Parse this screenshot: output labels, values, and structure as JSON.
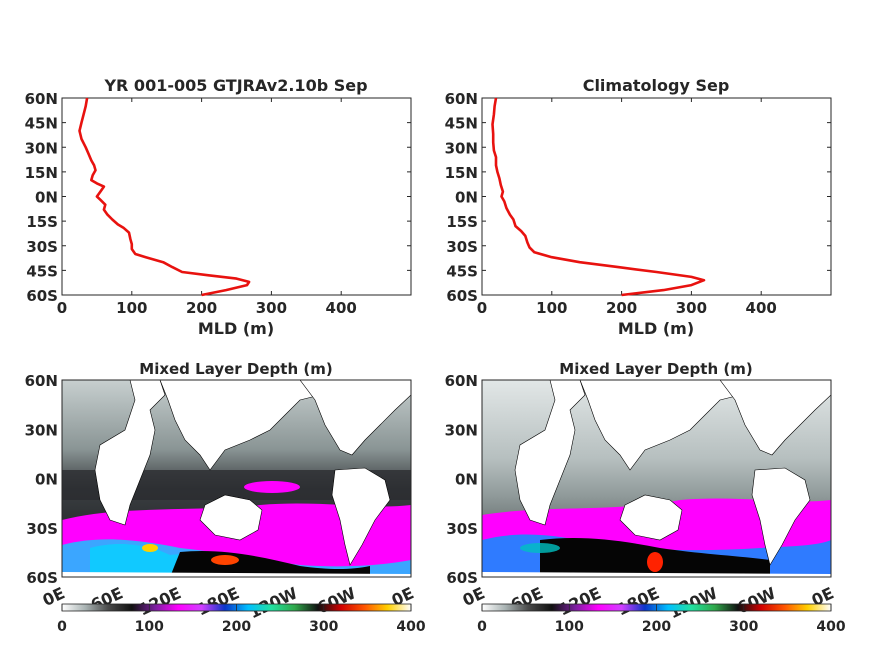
{
  "chart_data": [
    {
      "type": "line",
      "title": "YR 001-005 GTJRAv2.10b Sep",
      "xlabel": "MLD (m)",
      "ylabel": "",
      "xlim": [
        0,
        500
      ],
      "ylim": [
        -60,
        60
      ],
      "x_ticks": [
        "0",
        "100",
        "200",
        "300",
        "400"
      ],
      "y_ticks": [
        "60S",
        "45S",
        "30S",
        "15S",
        "0N",
        "15N",
        "30N",
        "45N",
        "60N"
      ],
      "line_color": "#e8120f",
      "series": [
        {
          "points": [
            [
              200,
              -60
            ],
            [
              235,
              -57
            ],
            [
              265,
              -54
            ],
            [
              268,
              -52
            ],
            [
              250,
              -50
            ],
            [
              210,
              -48
            ],
            [
              172,
              -46
            ],
            [
              158,
              -43
            ],
            [
              145,
              -40
            ],
            [
              120,
              -37
            ],
            [
              105,
              -35
            ],
            [
              100,
              -32
            ],
            [
              100,
              -29
            ],
            [
              98,
              -26
            ],
            [
              96,
              -22
            ],
            [
              88,
              -19
            ],
            [
              80,
              -17
            ],
            [
              72,
              -14
            ],
            [
              65,
              -11
            ],
            [
              60,
              -8
            ],
            [
              62,
              -5
            ],
            [
              55,
              -2
            ],
            [
              50,
              0
            ],
            [
              55,
              3
            ],
            [
              60,
              6
            ],
            [
              50,
              8
            ],
            [
              42,
              10
            ],
            [
              44,
              13
            ],
            [
              48,
              16
            ],
            [
              46,
              19
            ],
            [
              42,
              22
            ],
            [
              38,
              26
            ],
            [
              34,
              30
            ],
            [
              28,
              35
            ],
            [
              25,
              40
            ],
            [
              28,
              45
            ],
            [
              31,
              50
            ],
            [
              34,
              55
            ],
            [
              36,
              60
            ]
          ]
        }
      ]
    },
    {
      "type": "line",
      "title": "Climatology Sep",
      "xlabel": "MLD (m)",
      "ylabel": "",
      "xlim": [
        0,
        500
      ],
      "ylim": [
        -60,
        60
      ],
      "x_ticks": [
        "0",
        "100",
        "200",
        "300",
        "400"
      ],
      "y_ticks": [
        "60S",
        "45S",
        "30S",
        "15S",
        "0N",
        "15N",
        "30N",
        "45N",
        "60N"
      ],
      "line_color": "#e8120f",
      "series": [
        {
          "points": [
            [
              200,
              -60
            ],
            [
              260,
              -57
            ],
            [
              300,
              -54
            ],
            [
              318,
              -51
            ],
            [
              300,
              -49
            ],
            [
              250,
              -46
            ],
            [
              195,
              -43
            ],
            [
              140,
              -40
            ],
            [
              100,
              -37
            ],
            [
              75,
              -34
            ],
            [
              68,
              -31
            ],
            [
              65,
              -28
            ],
            [
              62,
              -24
            ],
            [
              56,
              -21
            ],
            [
              48,
              -18
            ],
            [
              45,
              -14
            ],
            [
              40,
              -11
            ],
            [
              35,
              -7
            ],
            [
              32,
              -3
            ],
            [
              28,
              0
            ],
            [
              30,
              3
            ],
            [
              27,
              7
            ],
            [
              25,
              11
            ],
            [
              22,
              15
            ],
            [
              20,
              19
            ],
            [
              20,
              24
            ],
            [
              17,
              28
            ],
            [
              16,
              33
            ],
            [
              16,
              38
            ],
            [
              15,
              44
            ],
            [
              17,
              50
            ],
            [
              18,
              55
            ],
            [
              20,
              60
            ]
          ]
        }
      ]
    },
    {
      "type": "heatmap",
      "title": "Mixed Layer Depth (m)",
      "x_ticks": [
        "0E",
        "60E",
        "120E",
        "180E",
        "120W",
        "60W",
        "0E"
      ],
      "y_ticks": [
        "60S",
        "30S",
        "0N",
        "30N",
        "60N"
      ],
      "ylim": [
        -60,
        60
      ]
    },
    {
      "type": "heatmap",
      "title": "Mixed Layer Depth (m)",
      "x_ticks": [
        "0E",
        "60E",
        "120E",
        "180E",
        "120W",
        "60W",
        "0E"
      ],
      "y_ticks": [
        "60S",
        "30S",
        "0N",
        "30N",
        "60N"
      ],
      "ylim": [
        -60,
        60
      ]
    }
  ],
  "colorbar": {
    "ticks": [
      "0",
      "100",
      "200",
      "300",
      "400"
    ],
    "range": [
      0,
      400
    ],
    "colors": [
      "#ffffff",
      "#a9b3b3",
      "#4a4a4a",
      "#111111",
      "#7a1f9e",
      "#ff00ff",
      "#d040ff",
      "#0b35c8",
      "#00bfff",
      "#22e0a0",
      "#2fa84a",
      "#111111",
      "#d00000",
      "#ff5500",
      "#ffd000",
      "#ffffff"
    ]
  },
  "colors": {
    "land": "#ffffff",
    "ocean_gray": "#8f9a9a",
    "band_magenta": "#ff00ff",
    "band_blue": "#1e6cff",
    "band_black": "#050505",
    "axis": "#262626"
  }
}
